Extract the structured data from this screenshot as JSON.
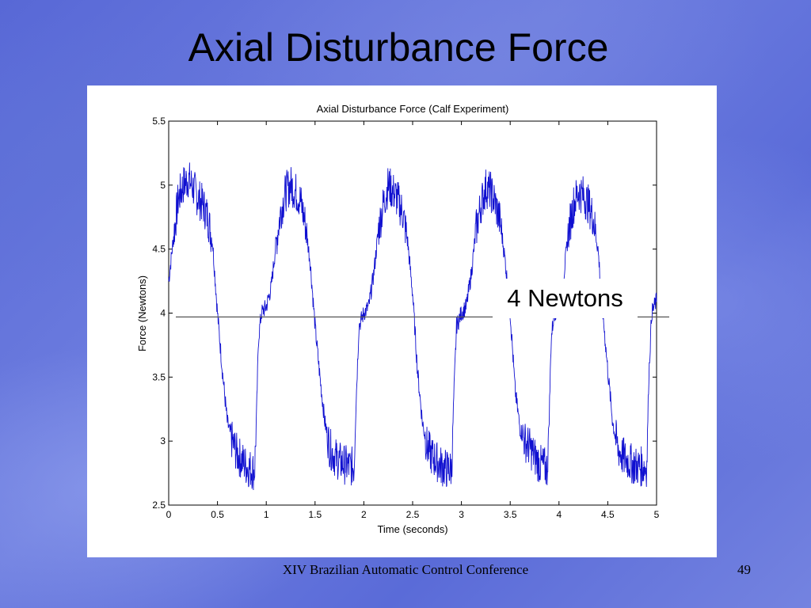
{
  "slide": {
    "title": "Axial Disturbance Force",
    "footer": "XIV Brazilian Automatic Control Conference",
    "page_number": "49"
  },
  "annotation": {
    "label": "4 Newtons",
    "line_value": 3.97
  },
  "colors": {
    "series": "#1010d0",
    "reference_line": "#555555",
    "background_blue": "#5a6bd8"
  },
  "chart_data": {
    "type": "line",
    "title": "Axial Disturbance Force (Calf Experiment)",
    "xlabel": "Time (seconds)",
    "ylabel": "Force (Newtons)",
    "xlim": [
      0,
      5
    ],
    "ylim": [
      2.5,
      5.5
    ],
    "xticks": [
      "0",
      "0.5",
      "1",
      "1.5",
      "2",
      "2.5",
      "3",
      "3.5",
      "4",
      "4.5",
      "5"
    ],
    "yticks": [
      "2.5",
      "3",
      "3.5",
      "4",
      "4.5",
      "5",
      "5.5"
    ],
    "grid": false,
    "period": 1.0,
    "series": [
      {
        "x": [
          0,
          0.05,
          0.1,
          0.15,
          0.2,
          0.25,
          0.3,
          0.35,
          0.4,
          0.45,
          0.5,
          0.55,
          0.6,
          0.65,
          0.7,
          0.75,
          0.8,
          0.85,
          0.88,
          0.9,
          0.92,
          0.95,
          1.0,
          1.05,
          1.1,
          1.15,
          1.2,
          1.25,
          1.3,
          1.35,
          1.4,
          1.45,
          1.5,
          1.55,
          1.6,
          1.65,
          1.7,
          1.75,
          1.8,
          1.85,
          1.9,
          1.92,
          1.95,
          2.0,
          2.05,
          2.1,
          2.15,
          2.2,
          2.25,
          2.3,
          2.35,
          2.4,
          2.45,
          2.5,
          2.55,
          2.6,
          2.65,
          2.7,
          2.75,
          2.8,
          2.85,
          2.9,
          2.92,
          2.95,
          3.0,
          3.05,
          3.1,
          3.15,
          3.2,
          3.25,
          3.3,
          3.35,
          3.4,
          3.45,
          3.5,
          3.55,
          3.6,
          3.65,
          3.7,
          3.75,
          3.8,
          3.85,
          3.88,
          3.9,
          3.92,
          3.95,
          4.0,
          4.05,
          4.1,
          4.15,
          4.2,
          4.25,
          4.3,
          4.35,
          4.4,
          4.45,
          4.5,
          4.55,
          4.6,
          4.65,
          4.7,
          4.75,
          4.8,
          4.85,
          4.9,
          4.92,
          4.95,
          5.0
        ],
        "values": [
          4.25,
          4.6,
          4.9,
          5.0,
          5.05,
          4.98,
          4.9,
          4.85,
          4.75,
          4.55,
          4.0,
          3.55,
          3.15,
          3.0,
          2.9,
          2.85,
          2.8,
          2.78,
          2.76,
          3.2,
          3.8,
          4.0,
          4.05,
          4.2,
          4.55,
          4.8,
          4.95,
          5.0,
          4.95,
          4.88,
          4.7,
          4.4,
          3.9,
          3.5,
          3.15,
          2.95,
          2.88,
          2.84,
          2.82,
          2.8,
          2.8,
          3.3,
          3.9,
          4.0,
          4.05,
          4.3,
          4.65,
          4.85,
          5.0,
          4.95,
          4.88,
          4.78,
          4.55,
          4.15,
          3.55,
          3.15,
          2.95,
          2.88,
          2.84,
          2.8,
          2.78,
          2.78,
          3.3,
          3.9,
          4.0,
          4.05,
          4.3,
          4.65,
          4.85,
          4.98,
          4.95,
          4.85,
          4.7,
          4.4,
          4.0,
          3.4,
          3.1,
          3.0,
          2.95,
          2.88,
          2.82,
          2.8,
          2.78,
          3.2,
          3.8,
          4.0,
          4.05,
          4.3,
          4.65,
          4.85,
          4.95,
          4.92,
          4.85,
          4.75,
          4.5,
          4.0,
          3.55,
          3.15,
          2.95,
          2.88,
          2.85,
          2.82,
          2.8,
          2.8,
          2.8,
          3.5,
          4.0,
          4.1
        ]
      }
    ]
  }
}
